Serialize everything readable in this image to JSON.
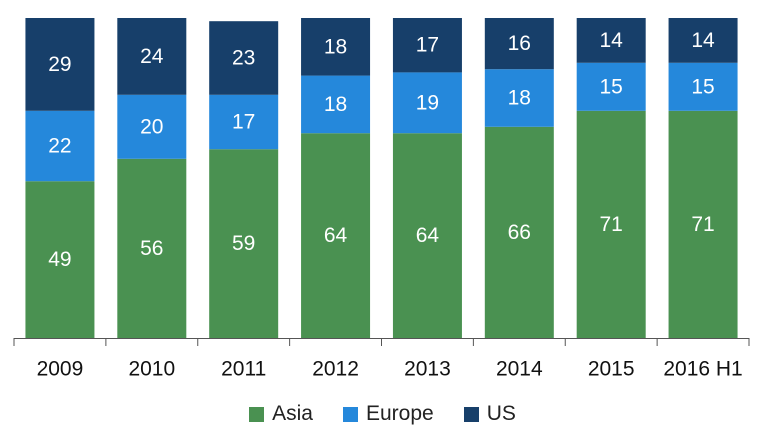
{
  "chart_data": {
    "type": "bar",
    "stacked": true,
    "categories": [
      "2009",
      "2010",
      "2011",
      "2012",
      "2013",
      "2014",
      "2015",
      "2016 H1"
    ],
    "series": [
      {
        "name": "Asia",
        "color": "#4a9151",
        "values": [
          49,
          56,
          59,
          64,
          64,
          66,
          71,
          71
        ]
      },
      {
        "name": "Europe",
        "color": "#2588db",
        "values": [
          22,
          20,
          17,
          18,
          19,
          18,
          15,
          15
        ]
      },
      {
        "name": "US",
        "color": "#173f6a",
        "values": [
          29,
          24,
          23,
          18,
          17,
          16,
          14,
          14
        ]
      }
    ],
    "ylim": [
      0,
      100
    ],
    "grid": false,
    "legend_position": "bottom"
  },
  "legend": {
    "items": [
      {
        "label": "Asia",
        "color": "#4a9151"
      },
      {
        "label": "Europe",
        "color": "#2588db"
      },
      {
        "label": "US",
        "color": "#173f6a"
      }
    ]
  }
}
